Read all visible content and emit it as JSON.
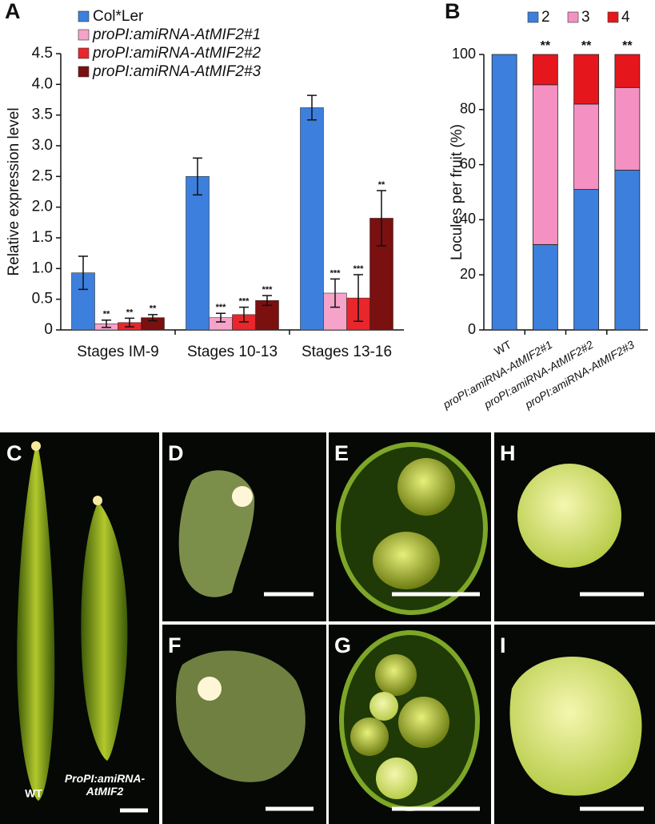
{
  "chart_data": [
    {
      "type": "bar",
      "panel_label": "A",
      "ylabel": "Relative expression level",
      "categories": [
        "Stages IM-9",
        "Stages 10-13",
        "Stages 13-16"
      ],
      "series": [
        {
          "name": "Col*Ler",
          "color": "#3d7fdc",
          "values": [
            0.93,
            2.5,
            3.62
          ],
          "errors": [
            0.27,
            0.3,
            0.2
          ],
          "annotations": [
            null,
            null,
            null
          ]
        },
        {
          "name": "proPI:amiRNA-AtMIF2#1",
          "color": "#f5a3c9",
          "values": [
            0.1,
            0.2,
            0.6
          ],
          "errors": [
            0.06,
            0.07,
            0.23
          ],
          "annotations": [
            "**",
            "***",
            "***"
          ]
        },
        {
          "name": "proPI:amiRNA-AtMIF2#2",
          "color": "#e8262b",
          "values": [
            0.12,
            0.25,
            0.52
          ],
          "errors": [
            0.07,
            0.12,
            0.38
          ],
          "annotations": [
            "**",
            "***",
            "***"
          ]
        },
        {
          "name": "proPI:amiRNA-AtMIF2#3",
          "color": "#7a1010",
          "values": [
            0.2,
            0.48,
            1.82
          ],
          "errors": [
            0.05,
            0.08,
            0.45
          ],
          "annotations": [
            "**",
            "***",
            "**"
          ]
        }
      ],
      "ylim": [
        0,
        4.5
      ],
      "yticks": [
        0,
        0.5,
        {
          "value": 1,
          "label": "1.0"
        },
        1.5,
        {
          "value": 2,
          "label": "2.0"
        },
        2.5,
        {
          "value": 3,
          "label": "3.0"
        },
        3.5,
        {
          "value": 4,
          "label": "4.0"
        },
        4.5
      ],
      "grid": false
    },
    {
      "type": "stacked_bar",
      "panel_label": "B",
      "ylabel": "Locules per fruit (%)",
      "categories": [
        "WT",
        "proPI:amiRNA-AtMIF2#1",
        "proPI:amiRNA-AtMIF2#2",
        "proPI:amiRNA-AtMIF2#3"
      ],
      "series": [
        {
          "name": "2",
          "color": "#3d7fdc",
          "values": [
            100,
            31,
            51,
            58
          ]
        },
        {
          "name": "3",
          "color": "#f591c2",
          "values": [
            0,
            58,
            31,
            30
          ]
        },
        {
          "name": "4",
          "color": "#e5171d",
          "values": [
            0,
            11,
            18,
            12
          ]
        }
      ],
      "annotations": [
        null,
        "**",
        "**",
        "**"
      ],
      "ylim": [
        0,
        100
      ],
      "yticks": [
        0,
        20,
        40,
        60,
        80,
        100
      ],
      "grid": false
    }
  ],
  "photo_panels": {
    "labels": [
      "C",
      "D",
      "E",
      "F",
      "G",
      "H",
      "I"
    ],
    "captions": [
      "WT",
      "ProPI:amiRNA-AtMIF2"
    ]
  }
}
